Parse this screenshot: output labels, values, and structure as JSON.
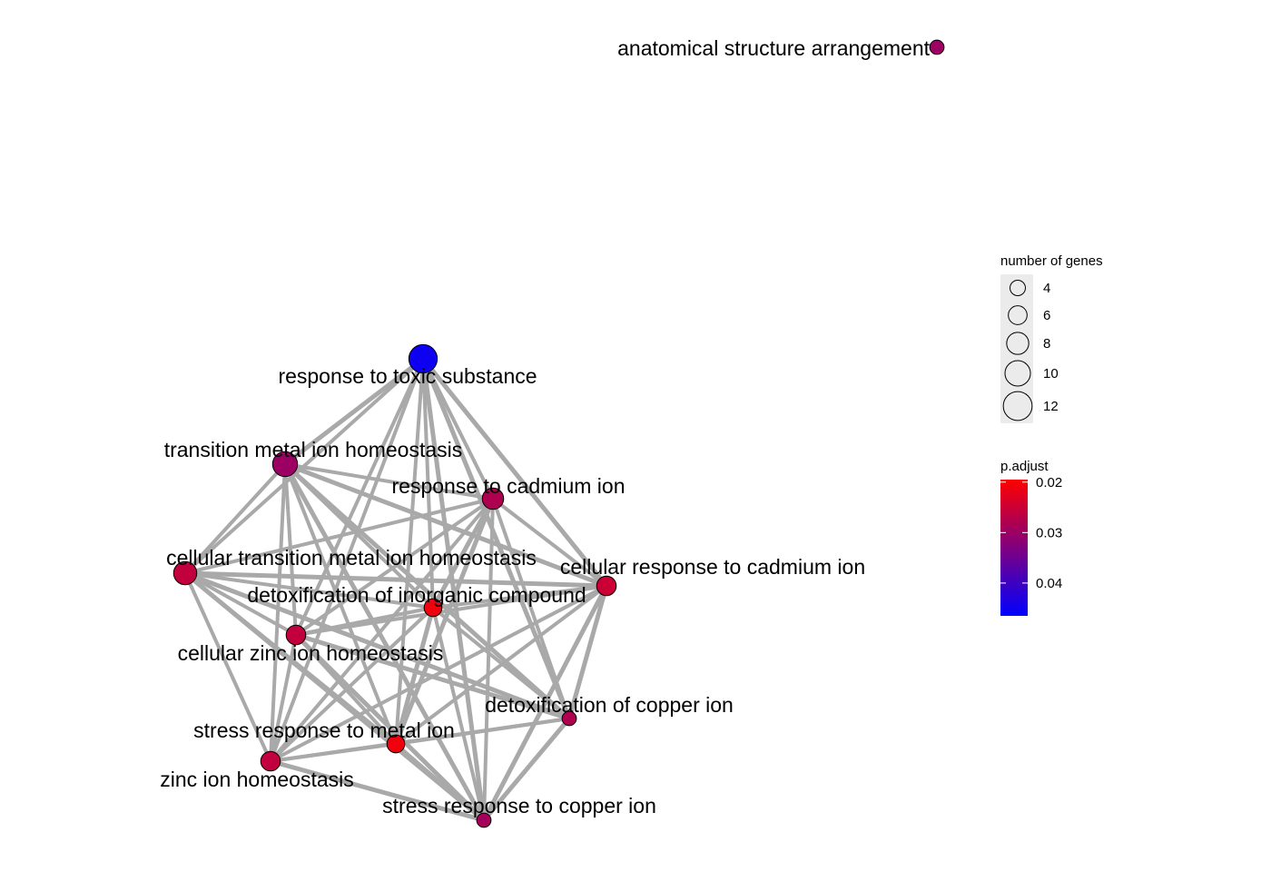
{
  "network": {
    "nodes": [
      {
        "id": "anatomical",
        "label": "anatomical structure arrangement",
        "genes": 4,
        "padj": 0.03
      },
      {
        "id": "toxic",
        "label": "response to toxic substance",
        "genes": 12,
        "padj": 0.045
      },
      {
        "id": "tmih",
        "label": "transition metal ion homeostasis",
        "genes": 10,
        "padj": 0.03
      },
      {
        "id": "cadmium",
        "label": "response to cadmium ion",
        "genes": 8,
        "padj": 0.028
      },
      {
        "id": "ctmih",
        "label": "cellular transition metal ion homeostasis",
        "genes": 9,
        "padj": 0.026
      },
      {
        "id": "crcad",
        "label": "cellular response to cadmium ion",
        "genes": 7,
        "padj": 0.025
      },
      {
        "id": "detinorg",
        "label": "detoxification of inorganic compound",
        "genes": 6,
        "padj": 0.021
      },
      {
        "id": "czih",
        "label": "cellular zinc ion homeostasis",
        "genes": 7,
        "padj": 0.026
      },
      {
        "id": "detcopper",
        "label": "detoxification of copper ion",
        "genes": 4,
        "padj": 0.028
      },
      {
        "id": "srmetal",
        "label": "stress response to metal ion",
        "genes": 6,
        "padj": 0.021
      },
      {
        "id": "zih",
        "label": "zinc ion homeostasis",
        "genes": 7,
        "padj": 0.026
      },
      {
        "id": "srcopper",
        "label": "stress response to copper ion",
        "genes": 4,
        "padj": 0.029
      }
    ],
    "edges": [
      [
        "toxic",
        "tmih"
      ],
      [
        "toxic",
        "cadmium"
      ],
      [
        "toxic",
        "ctmih"
      ],
      [
        "toxic",
        "crcad"
      ],
      [
        "toxic",
        "detinorg"
      ],
      [
        "toxic",
        "czih"
      ],
      [
        "toxic",
        "detcopper"
      ],
      [
        "toxic",
        "srmetal"
      ],
      [
        "toxic",
        "zih"
      ],
      [
        "toxic",
        "srcopper"
      ],
      [
        "tmih",
        "cadmium"
      ],
      [
        "tmih",
        "ctmih"
      ],
      [
        "tmih",
        "crcad"
      ],
      [
        "tmih",
        "detinorg"
      ],
      [
        "tmih",
        "czih"
      ],
      [
        "tmih",
        "detcopper"
      ],
      [
        "tmih",
        "srmetal"
      ],
      [
        "tmih",
        "zih"
      ],
      [
        "tmih",
        "srcopper"
      ],
      [
        "cadmium",
        "ctmih"
      ],
      [
        "cadmium",
        "crcad"
      ],
      [
        "cadmium",
        "detinorg"
      ],
      [
        "cadmium",
        "czih"
      ],
      [
        "cadmium",
        "detcopper"
      ],
      [
        "cadmium",
        "srmetal"
      ],
      [
        "cadmium",
        "zih"
      ],
      [
        "cadmium",
        "srcopper"
      ],
      [
        "ctmih",
        "crcad"
      ],
      [
        "ctmih",
        "detinorg"
      ],
      [
        "ctmih",
        "czih"
      ],
      [
        "ctmih",
        "detcopper"
      ],
      [
        "ctmih",
        "srmetal"
      ],
      [
        "ctmih",
        "zih"
      ],
      [
        "ctmih",
        "srcopper"
      ],
      [
        "crcad",
        "detinorg"
      ],
      [
        "crcad",
        "czih"
      ],
      [
        "crcad",
        "detcopper"
      ],
      [
        "crcad",
        "srmetal"
      ],
      [
        "crcad",
        "zih"
      ],
      [
        "crcad",
        "srcopper"
      ],
      [
        "detinorg",
        "czih"
      ],
      [
        "detinorg",
        "detcopper"
      ],
      [
        "detinorg",
        "srmetal"
      ],
      [
        "detinorg",
        "zih"
      ],
      [
        "detinorg",
        "srcopper"
      ],
      [
        "czih",
        "detcopper"
      ],
      [
        "czih",
        "srmetal"
      ],
      [
        "czih",
        "zih"
      ],
      [
        "czih",
        "srcopper"
      ],
      [
        "detcopper",
        "srmetal"
      ],
      [
        "detcopper",
        "zih"
      ],
      [
        "detcopper",
        "srcopper"
      ],
      [
        "srmetal",
        "zih"
      ],
      [
        "srmetal",
        "srcopper"
      ],
      [
        "zih",
        "srcopper"
      ]
    ]
  },
  "legend": {
    "size_title": "number of genes",
    "size_entries": [
      {
        "label": "4",
        "genes": 4
      },
      {
        "label": "6",
        "genes": 6
      },
      {
        "label": "8",
        "genes": 8
      },
      {
        "label": "10",
        "genes": 10
      },
      {
        "label": "12",
        "genes": 12
      }
    ],
    "color_title": "p.adjust",
    "color_ticks": [
      {
        "label": "0.02",
        "value": 0.02
      },
      {
        "label": "0.03",
        "value": 0.03
      },
      {
        "label": "0.04",
        "value": 0.04
      }
    ],
    "color_range": [
      0.0195,
      0.0465
    ]
  },
  "colors": {
    "low_padj": "#ff0000",
    "high_padj": "#0000ff",
    "edge": "#a9a9a9",
    "node_stroke": "#000000",
    "legend_key_bg": "#ebebeb"
  }
}
